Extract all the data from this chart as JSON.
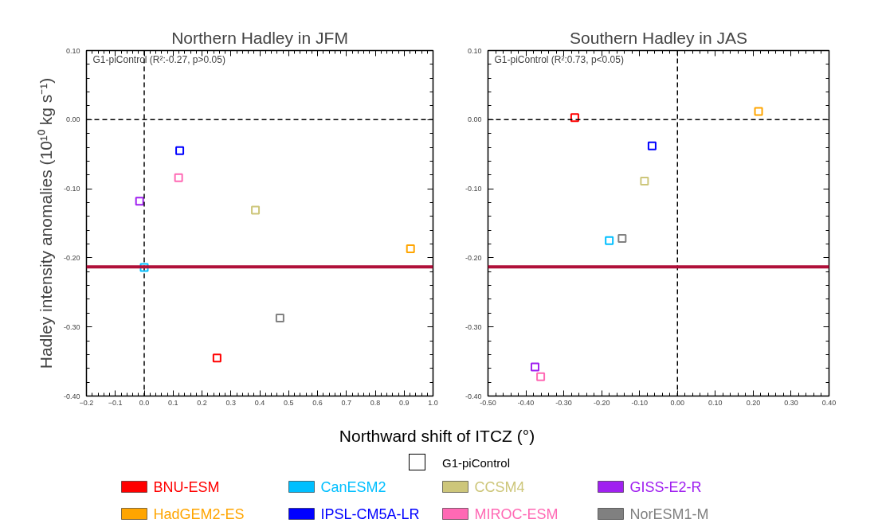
{
  "chart_data": [
    {
      "type": "scatter",
      "title": "Northern Hadley in JFM",
      "ylabel": "Hadley intensity anomalies (10¹⁰ kg s⁻¹)",
      "xlabel": "Northward shift of ITCZ (°)",
      "legend_title": "G1-piControl",
      "legend": "bottom",
      "marker": "square",
      "annotations": [
        "G1-piControl (R²:-0.27, p>0.05)"
      ],
      "xlim": [
        -0.2,
        1.0
      ],
      "xticks": [
        -0.2,
        -0.1,
        {
          "value": 0,
          "label": "0.0"
        },
        0.1,
        0.2,
        0.3,
        0.4,
        0.5,
        0.6,
        0.7,
        0.8,
        0.9,
        {
          "value": 1,
          "label": "1.0"
        }
      ],
      "ylim": [
        -0.4,
        0.1
      ],
      "yticks": [
        {
          "value": -0.4,
          "label": "-0.40"
        },
        {
          "value": -0.3,
          "label": "-0.30"
        },
        {
          "value": -0.2,
          "label": "-0.20"
        },
        {
          "value": -0.1,
          "label": "-0.10"
        },
        {
          "value": 0,
          "label": "0.00"
        },
        {
          "value": 0.1,
          "label": "0.10"
        }
      ],
      "ref_lines": [
        {
          "axis": "x",
          "value": 0,
          "color": "#000000",
          "line_style": "dashed"
        },
        {
          "axis": "y",
          "value": 0,
          "color": "#000000",
          "line_style": "dashed"
        },
        {
          "axis": "y",
          "value": -0.213,
          "color": "#b0103a",
          "line_style": "solid"
        }
      ],
      "series": [
        {
          "name": "BNU-ESM",
          "color": "#ff0000",
          "x": [
            0.252
          ],
          "values": [
            -0.345
          ]
        },
        {
          "name": "CanESM2",
          "color": "#00bfff",
          "x": [
            0.0
          ],
          "values": [
            -0.214
          ]
        },
        {
          "name": "CCSM4",
          "color": "#cdc67a",
          "x": [
            0.385
          ],
          "values": [
            -0.131
          ]
        },
        {
          "name": "GISS-E2-R",
          "color": "#a020f0",
          "x": [
            -0.016
          ],
          "values": [
            -0.118
          ]
        },
        {
          "name": "HadGEM2-ES",
          "color": "#ffa500",
          "x": [
            0.922
          ],
          "values": [
            -0.187
          ]
        },
        {
          "name": "IPSL-CM5A-LR",
          "color": "#0000ff",
          "x": [
            0.123
          ],
          "values": [
            -0.045
          ]
        },
        {
          "name": "MIROC-ESM",
          "color": "#ff69b4",
          "x": [
            0.119
          ],
          "values": [
            -0.084
          ]
        },
        {
          "name": "NorESM1-M",
          "color": "#808080",
          "x": [
            0.47
          ],
          "values": [
            -0.287
          ]
        }
      ]
    },
    {
      "type": "scatter",
      "title": "Southern Hadley in JAS",
      "marker": "square",
      "annotations": [
        "G1-piControl (R²:0.73, p<0.05)"
      ],
      "xlim": [
        -0.5,
        0.4
      ],
      "xticks": [
        {
          "value": -0.5,
          "label": "-0.50"
        },
        {
          "value": -0.4,
          "label": "-0.40"
        },
        {
          "value": -0.3,
          "label": "-0.30"
        },
        {
          "value": -0.2,
          "label": "-0.20"
        },
        {
          "value": -0.1,
          "label": "-0.10"
        },
        {
          "value": 0,
          "label": "0.00"
        },
        {
          "value": 0.1,
          "label": "0.10"
        },
        {
          "value": 0.2,
          "label": "0.20"
        },
        {
          "value": 0.3,
          "label": "0.30"
        },
        {
          "value": 0.4,
          "label": "0.40"
        }
      ],
      "ylim": [
        -0.4,
        0.1
      ],
      "yticks": [
        {
          "value": -0.4,
          "label": "-0.40"
        },
        {
          "value": -0.3,
          "label": "-0.30"
        },
        {
          "value": -0.2,
          "label": "-0.20"
        },
        {
          "value": -0.1,
          "label": "-0.10"
        },
        {
          "value": 0,
          "label": "0.00"
        },
        {
          "value": 0.1,
          "label": "0.10"
        }
      ],
      "ref_lines": [
        {
          "axis": "x",
          "value": 0,
          "color": "#000000",
          "line_style": "dashed"
        },
        {
          "axis": "y",
          "value": 0,
          "color": "#000000",
          "line_style": "dashed"
        },
        {
          "axis": "y",
          "value": -0.213,
          "color": "#b0103a",
          "line_style": "solid"
        }
      ],
      "series": [
        {
          "color": "#ff0000",
          "x": [
            -0.271
          ],
          "values": [
            0.003
          ]
        },
        {
          "color": "#00bfff",
          "x": [
            -0.18
          ],
          "values": [
            -0.175
          ]
        },
        {
          "color": "#cdc67a",
          "x": [
            -0.087
          ],
          "values": [
            -0.089
          ]
        },
        {
          "color": "#a020f0",
          "x": [
            -0.376
          ],
          "values": [
            -0.358
          ]
        },
        {
          "color": "#ffa500",
          "x": [
            0.214
          ],
          "values": [
            0.012
          ]
        },
        {
          "color": "#0000ff",
          "x": [
            -0.067
          ],
          "values": [
            -0.038
          ]
        },
        {
          "color": "#ff69b4",
          "x": [
            -0.361
          ],
          "values": [
            -0.372
          ]
        },
        {
          "color": "#808080",
          "x": [
            -0.146
          ],
          "values": [
            -0.172
          ]
        }
      ]
    }
  ]
}
